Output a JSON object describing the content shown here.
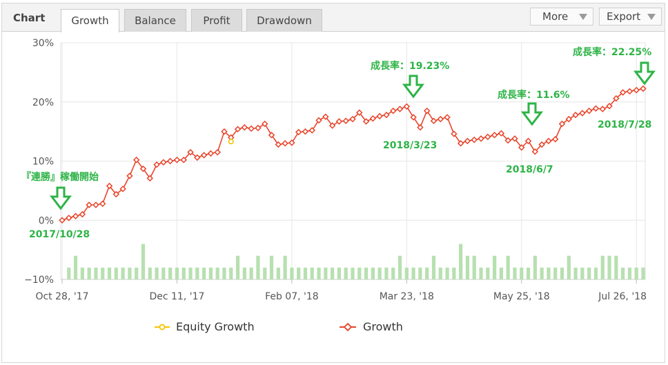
{
  "toolbar": {
    "title": "Chart",
    "tabs": [
      {
        "label": "Growth",
        "active": true
      },
      {
        "label": "Balance",
        "active": false
      },
      {
        "label": "Profit",
        "active": false
      },
      {
        "label": "Drawdown",
        "active": false
      }
    ],
    "more_label": "More",
    "export_label": "Export"
  },
  "colors": {
    "growth": "#e8442a",
    "equity": "#f5c400",
    "volume": "#b7e0b0",
    "annotation": "#2db446",
    "grid": "#e6e6e6"
  },
  "annotations": {
    "start_label": "『連勝』稼働開始",
    "start_date": "2017/10/28",
    "mar_rate": "成長率：19.23%",
    "mar_date": "2018/3/23",
    "jun_rate": "成長率：11.6%",
    "jun_date": "2018/6/7",
    "jul_rate": "成長率：22.25%",
    "jul_date": "2018/7/28"
  },
  "chart_data": {
    "type": "line",
    "yaxis": {
      "ticks": [
        30,
        20,
        10,
        0,
        -10
      ],
      "tick_labels": [
        "30%",
        "20%",
        "10%",
        "0%",
        "−10%"
      ],
      "ylim": [
        -10,
        30
      ]
    },
    "xaxis": {
      "tick_labels": [
        "Oct 28, '17",
        "Dec 11, '17",
        "Feb 07, '18",
        "Mar 23, '18",
        "May 25, '18",
        "Jul 26, '18"
      ],
      "tick_index": [
        0,
        17,
        34,
        51,
        68,
        85
      ]
    },
    "legend": {
      "position": "bottom",
      "entries": [
        "Equity Growth",
        "Growth"
      ]
    },
    "series": [
      {
        "name": "Growth",
        "values": [
          0,
          0.4,
          0.7,
          1,
          2.6,
          2.6,
          2.8,
          5.8,
          4.4,
          5.3,
          7.5,
          10.2,
          8.7,
          7.1,
          9.4,
          9.8,
          10,
          10.2,
          10.2,
          11.5,
          10.6,
          11,
          11.3,
          11.5,
          15,
          14,
          15.4,
          15.7,
          15.5,
          15.6,
          16.3,
          14.4,
          12.8,
          13,
          13.1,
          14.9,
          15,
          15.2,
          16.9,
          17.5,
          16,
          16.7,
          16.8,
          17.1,
          18.2,
          16.7,
          17.2,
          17.6,
          17.8,
          18.5,
          18.8,
          19.23,
          17.4,
          15.7,
          18.5,
          16.8,
          17.1,
          17.4,
          14.6,
          13,
          13.4,
          13.6,
          13.8,
          14.1,
          14.4,
          14.7,
          13.5,
          13.8,
          12.3,
          13.4,
          11.6,
          12.8,
          13.4,
          13.7,
          16.3,
          17.1,
          17.8,
          18.1,
          18.5,
          18.9,
          18.8,
          19.3,
          20.6,
          21.6,
          21.8,
          22,
          22.25
        ]
      },
      {
        "name": "Equity Growth",
        "values": [
          {
            "i": 25,
            "v": 13.3
          }
        ]
      }
    ],
    "volume": [
      0,
      2,
      4,
      2,
      2,
      2,
      2,
      2,
      2,
      2,
      2,
      2,
      6,
      2,
      2,
      2,
      2,
      2,
      2,
      2,
      2,
      2,
      2,
      2,
      2,
      2,
      4,
      2,
      2,
      4,
      2,
      4,
      2,
      4,
      2,
      2,
      2,
      2,
      2,
      2,
      2,
      2,
      2,
      2,
      2,
      2,
      2,
      2,
      2,
      2,
      4,
      2,
      2,
      2,
      2,
      4,
      2,
      2,
      2,
      6,
      4,
      4,
      2,
      2,
      4,
      2,
      4,
      2,
      2,
      2,
      4,
      2,
      2,
      2,
      2,
      4,
      2,
      2,
      2,
      2,
      4,
      4,
      4,
      2,
      2,
      2,
      2
    ]
  }
}
